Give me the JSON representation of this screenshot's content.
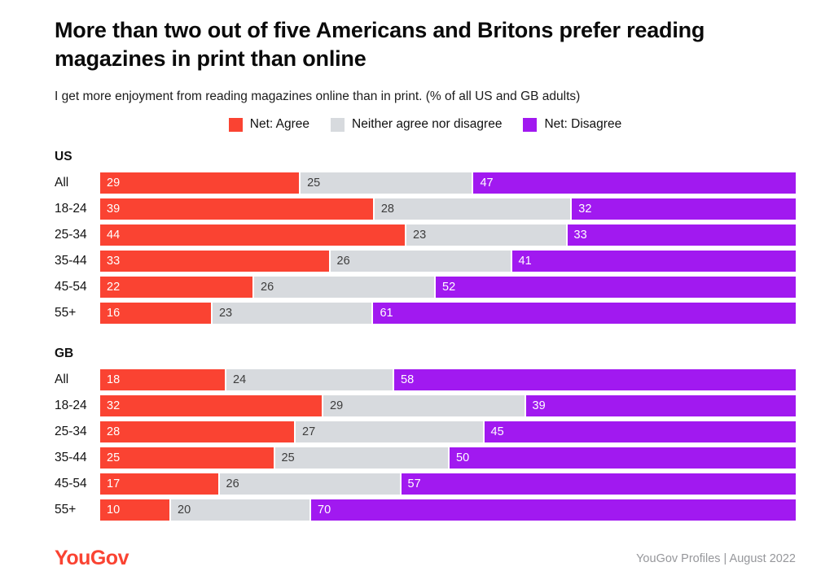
{
  "title": "More than two out of five Americans and Britons prefer reading magazines in print than online",
  "subtitle": "I get more enjoyment from reading magazines online than in print. (% of all US and GB adults)",
  "legend": [
    {
      "label": "Net: Agree",
      "color": "#fa4332"
    },
    {
      "label": "Neither agree nor disagree",
      "color": "#d7dade"
    },
    {
      "label": "Net: Disagree",
      "color": "#a119f0"
    }
  ],
  "colors": {
    "agree": "#fa4332",
    "neither": "#d7dade",
    "disagree": "#a119f0",
    "label_on_agree": "#ffffff",
    "label_on_neither": "#3d3d3d",
    "label_on_disagree": "#ffffff",
    "logo": "#fa4332",
    "source_text": "#96979b"
  },
  "footer": {
    "logo_text": "YouGov",
    "source": "YouGov Profiles | August 2022"
  },
  "chart_data": {
    "type": "bar",
    "orientation": "horizontal",
    "stacked": true,
    "normalized_to": 100,
    "series_names": [
      "Net: Agree",
      "Neither agree nor disagree",
      "Net: Disagree"
    ],
    "series_colors": [
      "#fa4332",
      "#d7dade",
      "#a119f0"
    ],
    "value_label_colors": [
      "#ffffff",
      "#3d3d3d",
      "#ffffff"
    ],
    "groups": [
      {
        "name": "US",
        "categories": [
          "All",
          "18-24",
          "25-34",
          "35-44",
          "45-54",
          "55+"
        ],
        "rows": [
          [
            29,
            25,
            47
          ],
          [
            39,
            28,
            32
          ],
          [
            44,
            23,
            33
          ],
          [
            33,
            26,
            41
          ],
          [
            22,
            26,
            52
          ],
          [
            16,
            23,
            61
          ]
        ]
      },
      {
        "name": "GB",
        "categories": [
          "All",
          "18-24",
          "25-34",
          "35-44",
          "45-54",
          "55+"
        ],
        "rows": [
          [
            18,
            24,
            58
          ],
          [
            32,
            29,
            39
          ],
          [
            28,
            27,
            45
          ],
          [
            25,
            25,
            50
          ],
          [
            17,
            26,
            57
          ],
          [
            10,
            20,
            70
          ]
        ]
      }
    ]
  }
}
